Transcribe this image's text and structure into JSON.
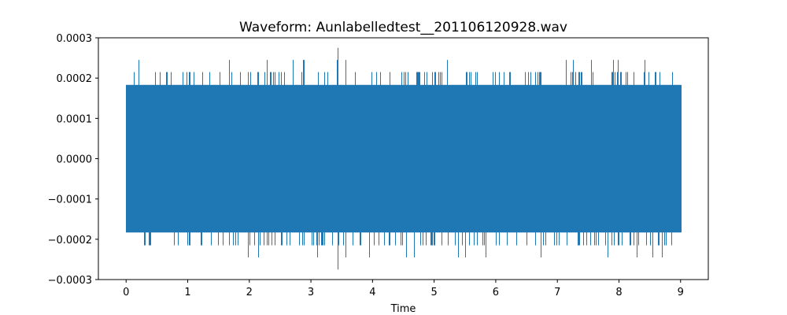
{
  "chart_data": {
    "type": "line",
    "title": "Waveform: Aunlabelledtest__201106120928.wav",
    "xlabel": "Time",
    "ylabel": "",
    "xlim": [
      -0.45,
      9.45
    ],
    "ylim": [
      -0.0003,
      0.0003
    ],
    "x_ticks": [
      0,
      1,
      2,
      3,
      4,
      5,
      6,
      7,
      8,
      9
    ],
    "x_tick_labels": [
      "0",
      "1",
      "2",
      "3",
      "4",
      "5",
      "6",
      "7",
      "8",
      "9"
    ],
    "y_ticks": [
      -0.0003,
      -0.0002,
      -0.0001,
      0.0,
      0.0001,
      0.0002,
      0.0003
    ],
    "y_tick_labels": [
      "−0.0003",
      "−0.0002",
      "−0.0001",
      "0.0000",
      "0.0001",
      "0.0002",
      "0.0003"
    ],
    "grid": false,
    "series_color": "#1f77b4",
    "series": [
      {
        "x_range": [
          0,
          9
        ],
        "envelope": {
          "typical_max": 0.000183,
          "typical_min": -0.000183,
          "frequent_peaks_max": 0.000215,
          "frequent_peaks_min": -0.000215,
          "occasional_peaks_max": 0.000245,
          "occasional_peaks_min": -0.000245,
          "global_max": {
            "x": 3.43,
            "y": 0.000275
          },
          "global_min": {
            "x": 3.43,
            "y": -0.000275
          }
        }
      }
    ]
  }
}
